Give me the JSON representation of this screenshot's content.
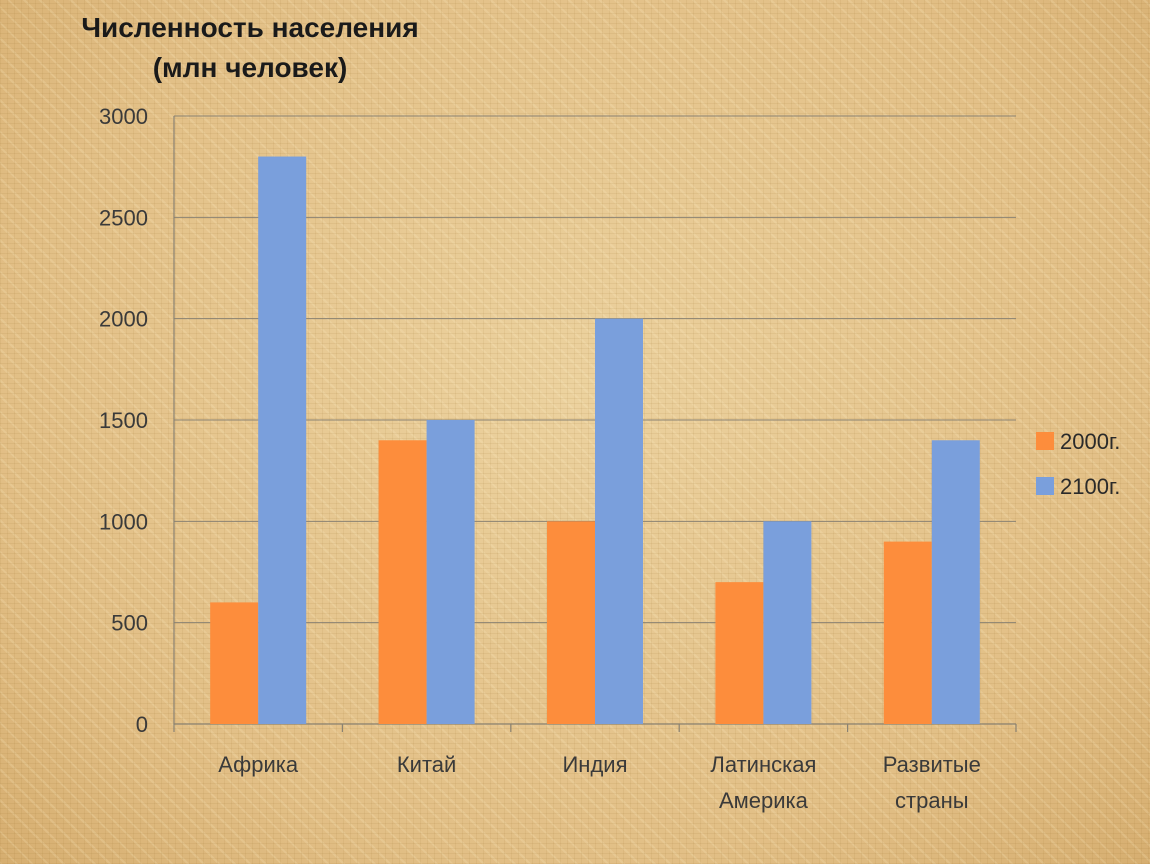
{
  "chart_data": {
    "type": "bar",
    "title": [
      "Численность населения",
      "(млн человек)"
    ],
    "categories": [
      [
        "Африка"
      ],
      [
        "Китай"
      ],
      [
        "Индия"
      ],
      [
        "Латинская",
        "Америка"
      ],
      [
        "Развитые",
        "страны"
      ]
    ],
    "series": [
      {
        "name": "2000г.",
        "color": "#fd8d3c",
        "values": [
          600,
          1400,
          1000,
          700,
          900
        ]
      },
      {
        "name": "2100г.",
        "color": "#7a9fdc",
        "values": [
          2800,
          1500,
          2000,
          1000,
          1400
        ]
      }
    ],
    "ylim": [
      0,
      3000
    ],
    "yticks": [
      0,
      500,
      1000,
      1500,
      2000,
      2500,
      3000
    ],
    "grid": true,
    "legend": "right",
    "xlabel": "",
    "ylabel": ""
  }
}
